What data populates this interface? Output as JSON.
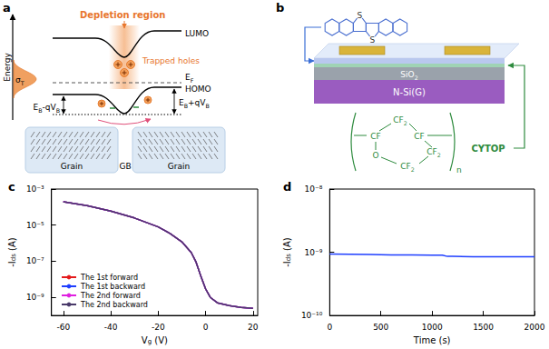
{
  "panels": {
    "a": {
      "label": "a",
      "energy_axis": "Energy",
      "depletion": "Depletion region",
      "trapped": "Trapped holes",
      "lumo": "LUMO",
      "homo": "HOMO",
      "fermi": [
        "E",
        {
          "sub": "F"
        }
      ],
      "disorder": [
        "σ",
        {
          "sub": "T"
        }
      ],
      "barrier_left": [
        "E",
        {
          "sub": "B"
        },
        "-qV",
        {
          "sub": "B"
        }
      ],
      "barrier_right": [
        "E",
        {
          "sub": "B"
        },
        "+qV",
        {
          "sub": "B"
        }
      ],
      "grains": [
        "Grain",
        "GB",
        "Grain"
      ]
    },
    "b": {
      "label": "b",
      "sulfur": [
        "S",
        "S"
      ],
      "dielectric": [
        "SiO",
        {
          "sub": "2"
        }
      ],
      "gate": "N-Si(G)",
      "polymer": "CYTOP",
      "formula": {
        "top": [
          "CF",
          {
            "sub": "2"
          }
        ],
        "left": "CF",
        "right": "CF",
        "right_lower": [
          "CF",
          {
            "sub": "2"
          }
        ],
        "oxygen": "O",
        "bottom": [
          "CF",
          {
            "sub": "2"
          }
        ],
        "repeat": "n"
      }
    }
  },
  "chart_data": [
    {
      "panel_label": "c",
      "type": "line",
      "xlabel": [
        "V",
        {
          "sub": "g"
        },
        " (V)"
      ],
      "ylabel": [
        "-I",
        {
          "sub": "ds"
        },
        " (A)"
      ],
      "log": "y",
      "grid": false,
      "legend": "lower left",
      "xlim": [
        -65,
        22
      ],
      "xticks": [
        -60,
        -40,
        -20,
        0,
        20
      ],
      "ylim": [
        1e-10,
        0.001
      ],
      "yticks": [
        {
          "value": 1e-09,
          "label": "10⁻⁹"
        },
        {
          "value": 1e-07,
          "label": "10⁻⁷"
        },
        {
          "value": 1e-05,
          "label": "10⁻⁵"
        },
        {
          "value": 0.001,
          "label": "10⁻³"
        }
      ],
      "x": [
        -60,
        -50,
        -40,
        -30,
        -20,
        -15,
        -10,
        -6,
        -4,
        -2,
        0,
        2,
        5,
        10,
        15,
        20
      ],
      "series": [
        {
          "name": "The 1st forward",
          "color": "#e41a1c",
          "values": [
            0.0002,
            0.00012,
            6e-05,
            2.5e-05,
            8e-06,
            3.5e-06,
            1.2e-06,
            3e-07,
            9e-08,
            1.5e-08,
            3e-09,
            1e-09,
            5e-10,
            3.5e-10,
            2.8e-10,
            2.5e-10
          ]
        },
        {
          "name": "The 1st backward",
          "color": "#1f3fff",
          "values": [
            0.0002,
            0.00012,
            6e-05,
            2.5e-05,
            8e-06,
            3.5e-06,
            1.2e-06,
            3e-07,
            9e-08,
            1.5e-08,
            3e-09,
            1e-09,
            5e-10,
            3.5e-10,
            2.8e-10,
            2.5e-10
          ]
        },
        {
          "name": "The 2nd forward",
          "color": "#e020e0",
          "values": [
            0.0002,
            0.00012,
            6e-05,
            2.5e-05,
            8e-06,
            3.5e-06,
            1.2e-06,
            3e-07,
            9e-08,
            1.5e-08,
            3e-09,
            1e-09,
            5e-10,
            3.5e-10,
            2.8e-10,
            2.5e-10
          ]
        },
        {
          "name": "The 2nd backward",
          "color": "#4a3a6a",
          "values": [
            0.0002,
            0.00012,
            6e-05,
            2.5e-05,
            8e-06,
            3.5e-06,
            1.2e-06,
            3e-07,
            9e-08,
            1.5e-08,
            3e-09,
            1e-09,
            5e-10,
            3.5e-10,
            2.8e-10,
            2.5e-10
          ]
        }
      ]
    },
    {
      "panel_label": "d",
      "type": "line",
      "xlabel": "Time (s)",
      "ylabel": [
        "-I",
        {
          "sub": "ds"
        },
        " (A)"
      ],
      "log": "y",
      "grid": false,
      "xlim": [
        0,
        2000
      ],
      "xticks": [
        0,
        500,
        1000,
        1500,
        2000
      ],
      "ylim": [
        1e-10,
        1e-08
      ],
      "yticks": [
        {
          "value": 1e-10,
          "label": "10⁻¹⁰"
        },
        {
          "value": 1e-09,
          "label": "10⁻⁹"
        },
        {
          "value": 1e-08,
          "label": "10⁻⁸"
        }
      ],
      "x": [
        0,
        200,
        400,
        600,
        800,
        1000,
        1100,
        1150,
        1200,
        1400,
        1600,
        1800,
        2000
      ],
      "values": [
        9.4e-10,
        9.3e-10,
        9.2e-10,
        9.1e-10,
        9.1e-10,
        9e-10,
        9e-10,
        8.6e-10,
        8.6e-10,
        8.5e-10,
        8.5e-10,
        8.5e-10,
        8.5e-10
      ],
      "color": "#1f3fff"
    }
  ]
}
